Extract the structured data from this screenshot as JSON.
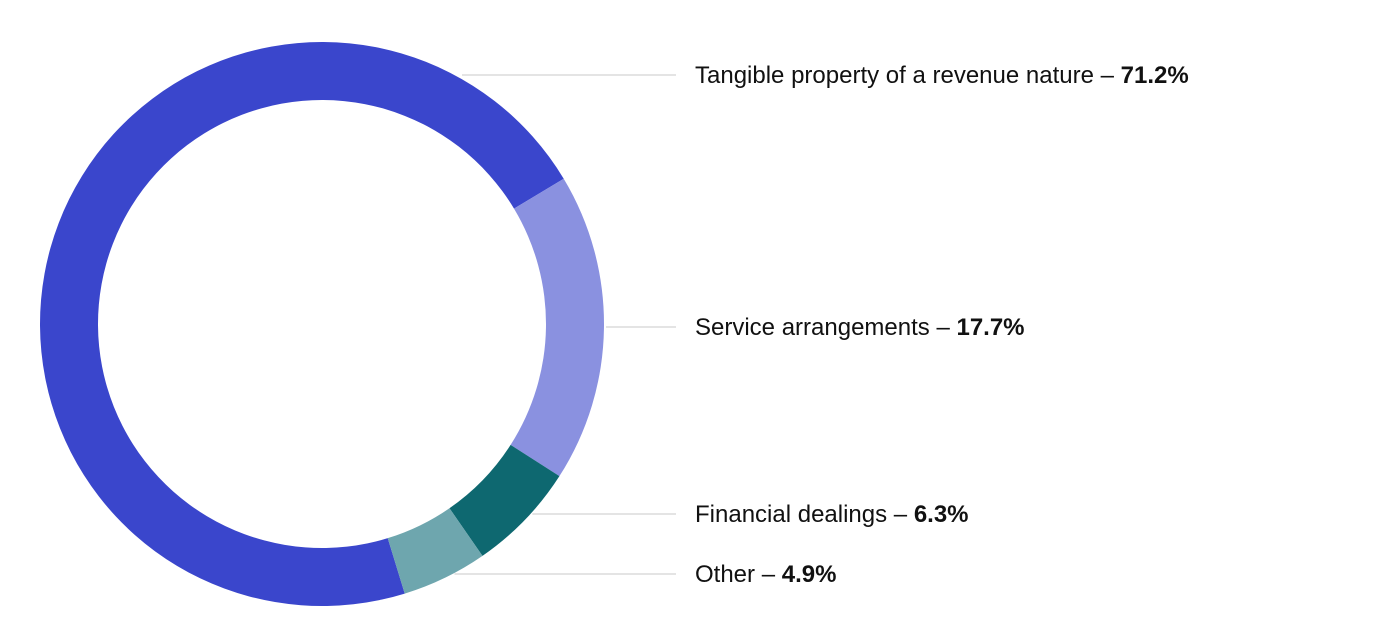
{
  "chart_data": {
    "type": "pie",
    "variant": "donut",
    "title": "",
    "legend_placement": "right",
    "separator": " – ",
    "slices": [
      {
        "label": "Tangible property of a revenue nature",
        "value": 71.2,
        "display": "71.2%",
        "color": "#3a46cc"
      },
      {
        "label": "Service arrangements",
        "value": 17.7,
        "display": "17.7%",
        "color": "#8a91e0"
      },
      {
        "label": "Financial dealings",
        "value": 6.3,
        "display": "6.3%",
        "color": "#0e6870"
      },
      {
        "label": "Other",
        "value": 4.9,
        "display": "4.9%",
        "color": "#6ea6ae"
      }
    ]
  }
}
